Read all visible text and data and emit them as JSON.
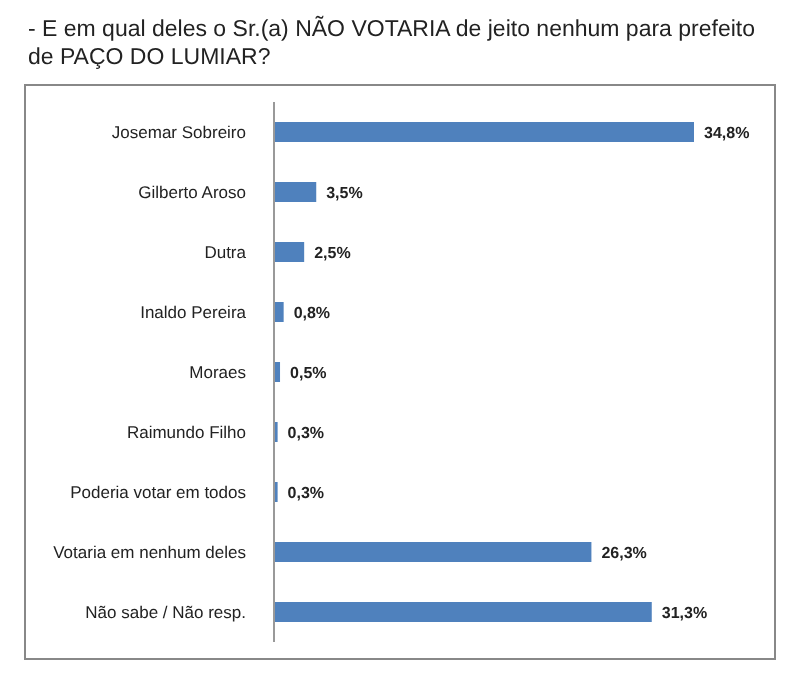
{
  "chart_data": {
    "type": "bar",
    "orientation": "horizontal",
    "title": "- E em qual deles o Sr.(a) NÃO VOTARIA de jeito nenhum para prefeito de PAÇO DO LUMIAR?",
    "categories": [
      "Josemar Sobreiro",
      "Gilberto Aroso",
      "Dutra",
      "Inaldo Pereira",
      "Moraes",
      "Raimundo Filho",
      "Poderia votar em todos",
      "Votaria em nenhum deles",
      "Não sabe / Não resp."
    ],
    "values": [
      34.8,
      3.5,
      2.5,
      0.8,
      0.5,
      0.3,
      0.3,
      26.3,
      31.3
    ],
    "value_labels": [
      "34,8%",
      "3,5%",
      "2,5%",
      "0,8%",
      "0,5%",
      "0,3%",
      "0,3%",
      "26,3%",
      "31,3%"
    ],
    "color": "#4f81bd"
  }
}
